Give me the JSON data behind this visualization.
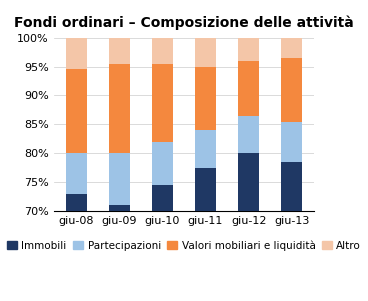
{
  "title": "Fondi ordinari – Composizione delle attività",
  "categories": [
    "giu-08",
    "giu-09",
    "giu-10",
    "giu-11",
    "giu-12",
    "giu-13"
  ],
  "series_heights": {
    "Immobili": [
      3.0,
      1.0,
      4.5,
      7.5,
      10.0,
      8.5
    ],
    "Partecipazioni": [
      7.0,
      9.0,
      7.5,
      6.5,
      6.5,
      7.0
    ],
    "Valori mobiliari e liquidità": [
      14.5,
      15.5,
      13.5,
      11.0,
      9.5,
      11.0
    ],
    "Altro": [
      5.5,
      4.5,
      4.5,
      5.0,
      4.0,
      3.5
    ]
  },
  "colors": {
    "Immobili": "#1f3864",
    "Partecipazioni": "#9dc3e6",
    "Valori mobiliari e liquidità": "#f4883e",
    "Altro": "#f4c6a8"
  },
  "ylim": [
    70,
    100
  ],
  "yticks": [
    70,
    75,
    80,
    85,
    90,
    95,
    100
  ],
  "ytick_labels": [
    "70%",
    "75%",
    "80%",
    "85%",
    "90%",
    "95%",
    "100%"
  ],
  "bar_bottom": 70.0,
  "background_color": "#ffffff",
  "title_fontsize": 10,
  "tick_fontsize": 8,
  "legend_fontsize": 7.5,
  "bar_width": 0.5
}
